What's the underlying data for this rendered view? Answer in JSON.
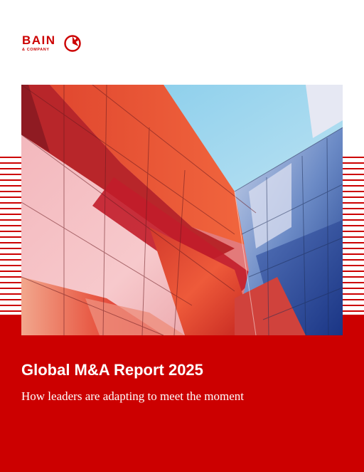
{
  "logo": {
    "wordmark": "BAIN",
    "sub": "& COMPANY",
    "mark_icon": "bain-compass-icon",
    "color": "#cc0000"
  },
  "cover": {
    "title": "Global M&A Report 2025",
    "subtitle": "How leaders are adapting to meet the moment",
    "accent_color": "#cc0000",
    "photo": "modern-glass-building-facade-image"
  }
}
